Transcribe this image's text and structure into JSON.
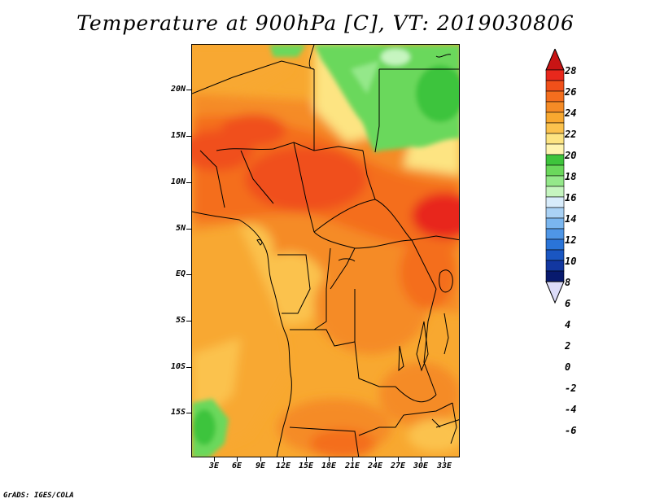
{
  "title": "Temperature at 900hPa [C], VT: 2019030806",
  "credit": "GrADS: IGES/COLA",
  "y_axis": {
    "labels": [
      "20N",
      "15N",
      "10N",
      "5N",
      "EQ",
      "5S",
      "10S",
      "15S"
    ],
    "lat_values": [
      20,
      15,
      10,
      5,
      0,
      -5,
      -10,
      -15
    ]
  },
  "x_axis": {
    "labels": [
      "3E",
      "6E",
      "9E",
      "12E",
      "15E",
      "18E",
      "21E",
      "24E",
      "27E",
      "30E",
      "33E"
    ],
    "lon_values": [
      3,
      6,
      9,
      12,
      15,
      18,
      21,
      24,
      27,
      30,
      33
    ]
  },
  "colorbar": {
    "labels": [
      "28",
      "26",
      "24",
      "22",
      "20",
      "18",
      "16",
      "14",
      "12",
      "10",
      "8",
      "6",
      "4",
      "2",
      "0",
      "-2",
      "-4",
      "-6"
    ],
    "colors": [
      "#e8281c",
      "#f0501a",
      "#f46e1e",
      "#f58b26",
      "#f8a830",
      "#fbc24e",
      "#fde482",
      "#fff4b0",
      "#3ec43c",
      "#6bd85c",
      "#94e88a",
      "#c6f5c0",
      "#d8ecfb",
      "#aad2f5",
      "#7ab6ef",
      "#4f96e6",
      "#2a74d8",
      "#1a56c2",
      "#1237a0",
      "#081a6e"
    ],
    "top_arrow_color": "#c81414",
    "bottom_arrow_color": "#dcdcf8"
  }
}
